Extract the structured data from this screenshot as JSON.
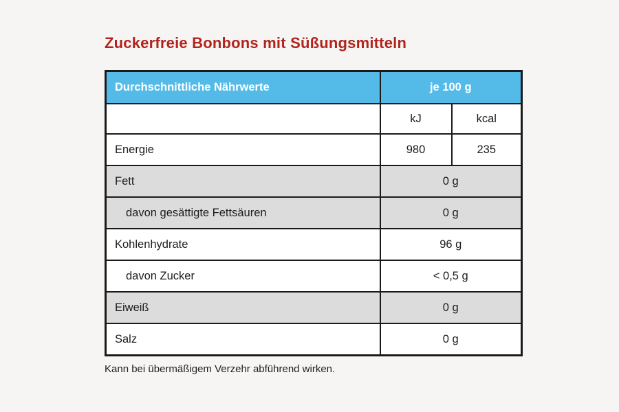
{
  "page": {
    "title": "Zuckerfreie Bonbons mit Süßungsmitteln",
    "footnote": "Kann bei übermäßigem Verzehr abführend wirken."
  },
  "colors": {
    "title_red": "#b2241e",
    "header_blue": "#54bbe8",
    "shaded_row_gray": "#dcdcdc",
    "border_black": "#1a1a1a",
    "page_background": "#f6f5f3"
  },
  "table": {
    "header": {
      "label": "Durchschnittliche Nährwerte",
      "per": "je 100 g"
    },
    "unit_row": {
      "kj": "kJ",
      "kcal": "kcal"
    },
    "energy_row": {
      "label": "Energie",
      "kj": "980",
      "kcal": "235"
    },
    "rows": [
      {
        "label": "Fett",
        "value": "0 g",
        "indent": false,
        "shaded": true
      },
      {
        "label": "davon gesättigte Fettsäuren",
        "value": "0 g",
        "indent": true,
        "shaded": true
      },
      {
        "label": "Kohlenhydrate",
        "value": "96 g",
        "indent": false,
        "shaded": false
      },
      {
        "label": "davon Zucker",
        "value": "< 0,5 g",
        "indent": true,
        "shaded": false
      },
      {
        "label": "Eiweiß",
        "value": "0 g",
        "indent": false,
        "shaded": true
      },
      {
        "label": "Salz",
        "value": "0 g",
        "indent": false,
        "shaded": false
      }
    ]
  }
}
